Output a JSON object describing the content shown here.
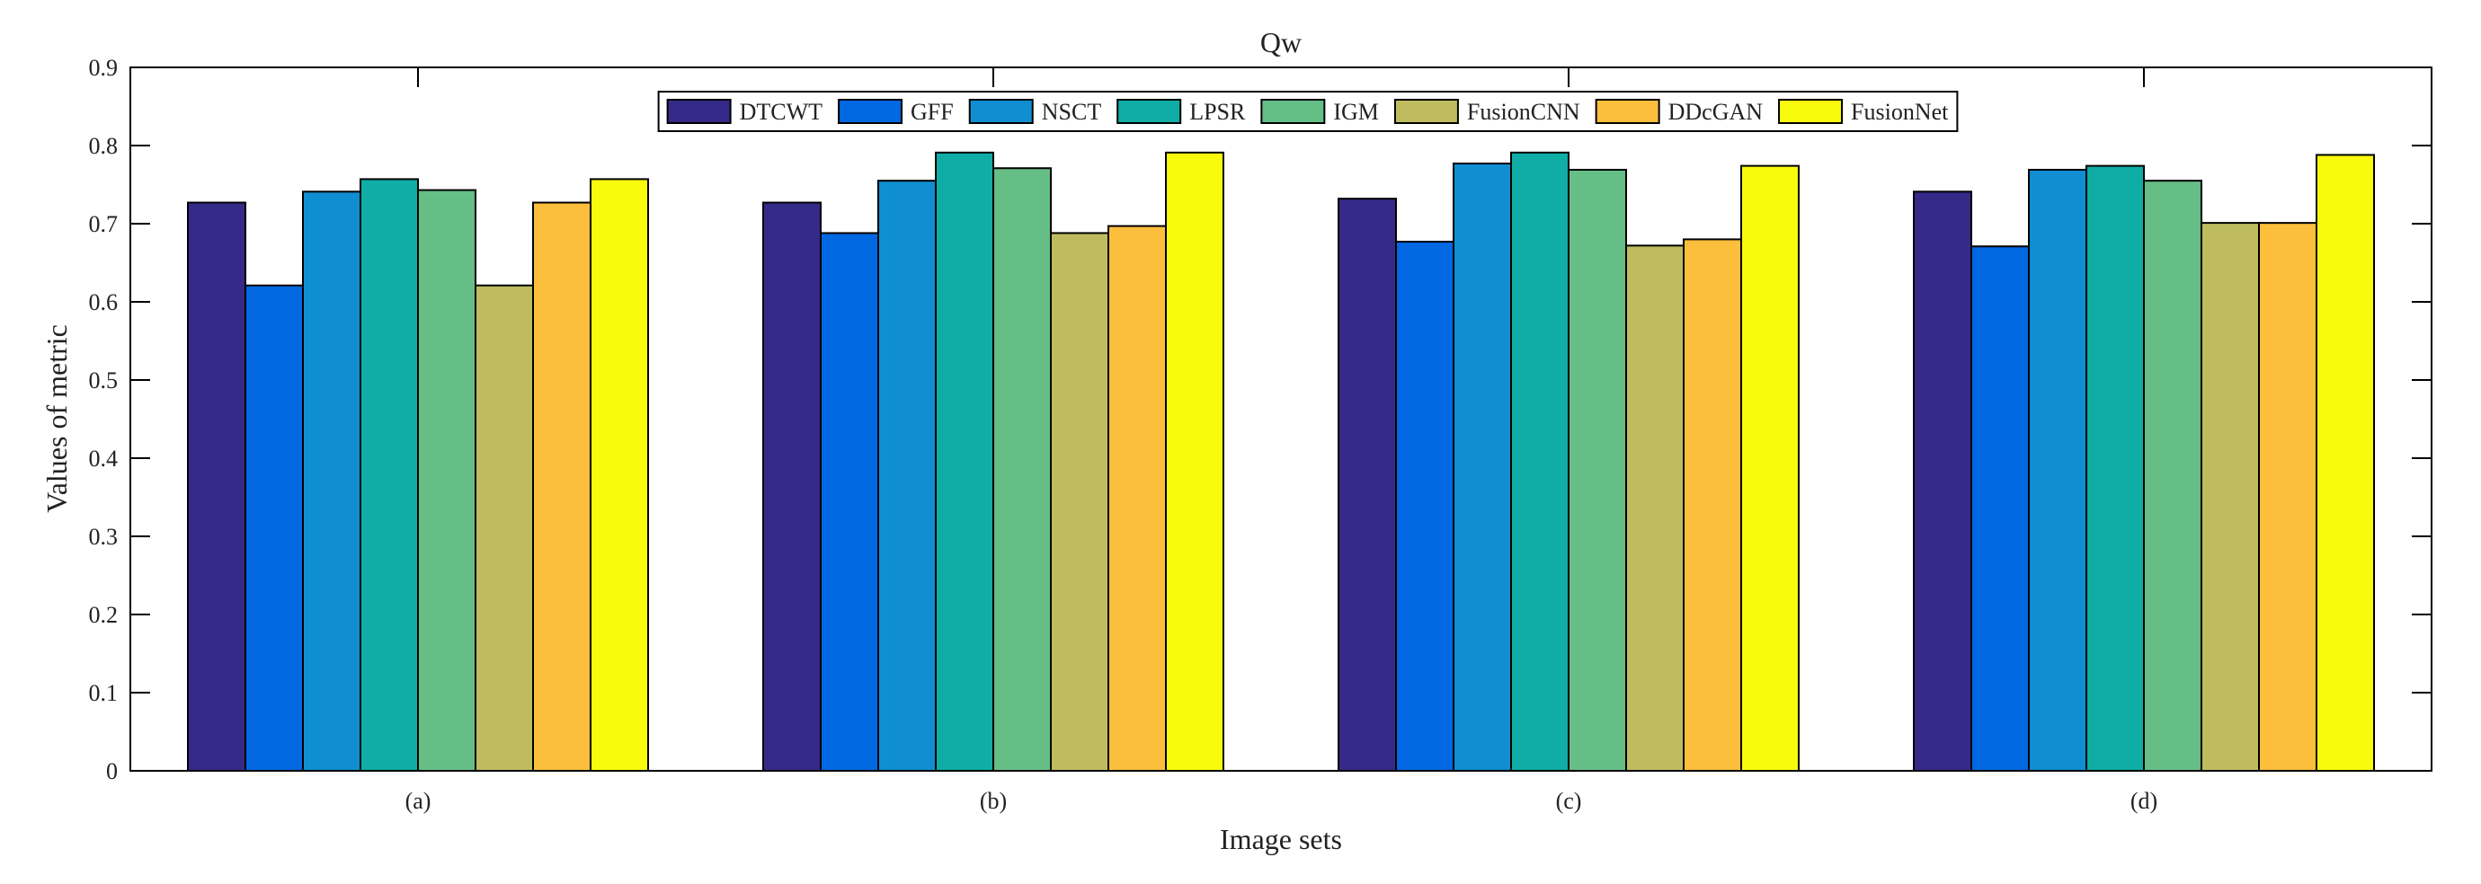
{
  "chart_data": {
    "type": "bar",
    "title": "Qw",
    "xlabel": "Image sets",
    "ylabel": "Values of metric",
    "ylim": [
      0,
      0.9
    ],
    "yticks": [
      0,
      0.1,
      0.2,
      0.3,
      0.4,
      0.5,
      0.6,
      0.7,
      0.8,
      0.9
    ],
    "ytick_labels": [
      "0",
      "0.1",
      "0.2",
      "0.3",
      "0.4",
      "0.5",
      "0.6",
      "0.7",
      "0.8",
      "0.9"
    ],
    "categories": [
      "(a)",
      "(b)",
      "(c)",
      "(d)"
    ],
    "legend_position": "top-center",
    "grid": false,
    "series": [
      {
        "name": "DTCWT",
        "color": "#352a87",
        "values": [
          0.727,
          0.727,
          0.732,
          0.741
        ]
      },
      {
        "name": "GFF",
        "color": "#0268e1",
        "values": [
          0.621,
          0.688,
          0.677,
          0.671
        ]
      },
      {
        "name": "NSCT",
        "color": "#108ed2",
        "values": [
          0.741,
          0.755,
          0.777,
          0.769
        ]
      },
      {
        "name": "LPSR",
        "color": "#0fada5",
        "values": [
          0.757,
          0.791,
          0.791,
          0.774
        ]
      },
      {
        "name": "IGM",
        "color": "#65be86",
        "values": [
          0.743,
          0.771,
          0.769,
          0.755
        ]
      },
      {
        "name": "FusionCNN",
        "color": "#bfbc5f",
        "values": [
          0.621,
          0.688,
          0.672,
          0.701
        ]
      },
      {
        "name": "DDcGAN",
        "color": "#fcbe3d",
        "values": [
          0.727,
          0.697,
          0.68,
          0.701
        ]
      },
      {
        "name": "FusionNet",
        "color": "#f9fb0e",
        "values": [
          0.757,
          0.791,
          0.774,
          0.788
        ]
      }
    ]
  }
}
